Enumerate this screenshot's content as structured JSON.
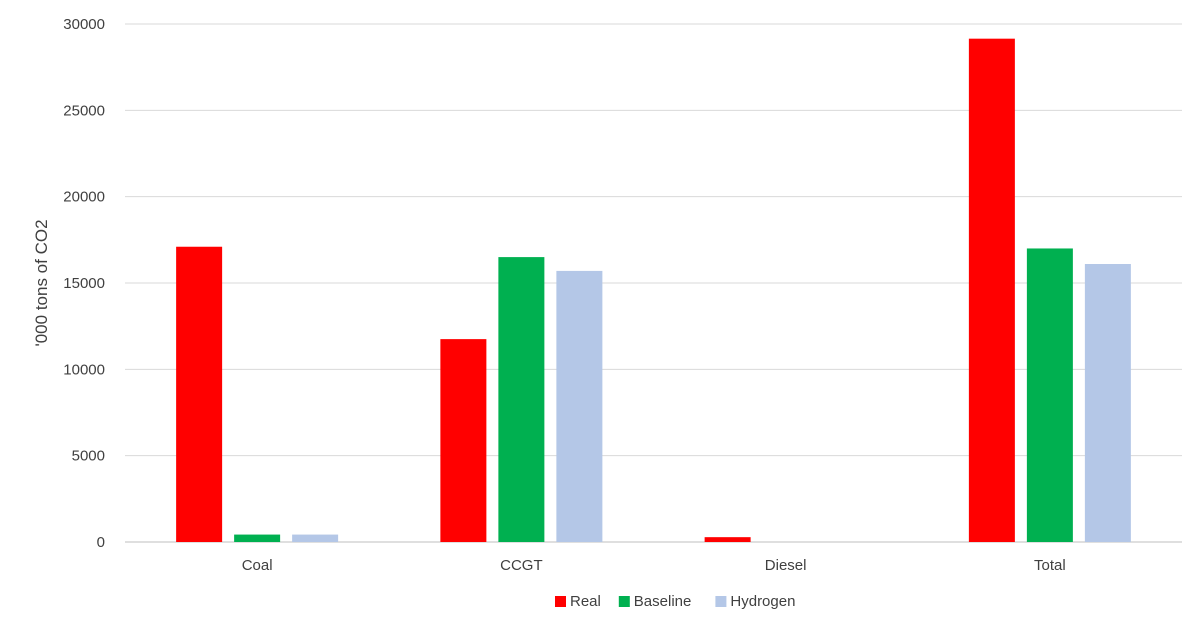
{
  "chart_data": {
    "type": "bar",
    "title": "",
    "xlabel": "",
    "ylabel": "'000 tons of CO2",
    "categories": [
      "Coal",
      "CCGT",
      "Diesel",
      "Total"
    ],
    "series": [
      {
        "name": "Real",
        "color": "#ff0000",
        "values": [
          17100,
          11750,
          280,
          29150
        ]
      },
      {
        "name": "Baseline",
        "color": "#00b050",
        "values": [
          430,
          16500,
          0,
          17000
        ]
      },
      {
        "name": "Hydrogen",
        "color": "#b4c7e7",
        "values": [
          430,
          15700,
          0,
          16100
        ]
      }
    ],
    "ylim": [
      0,
      30000
    ],
    "yticks": [
      "0",
      "5000",
      "10000",
      "15000",
      "20000",
      "25000",
      "30000"
    ],
    "grid": true,
    "legend_position": "bottom"
  }
}
